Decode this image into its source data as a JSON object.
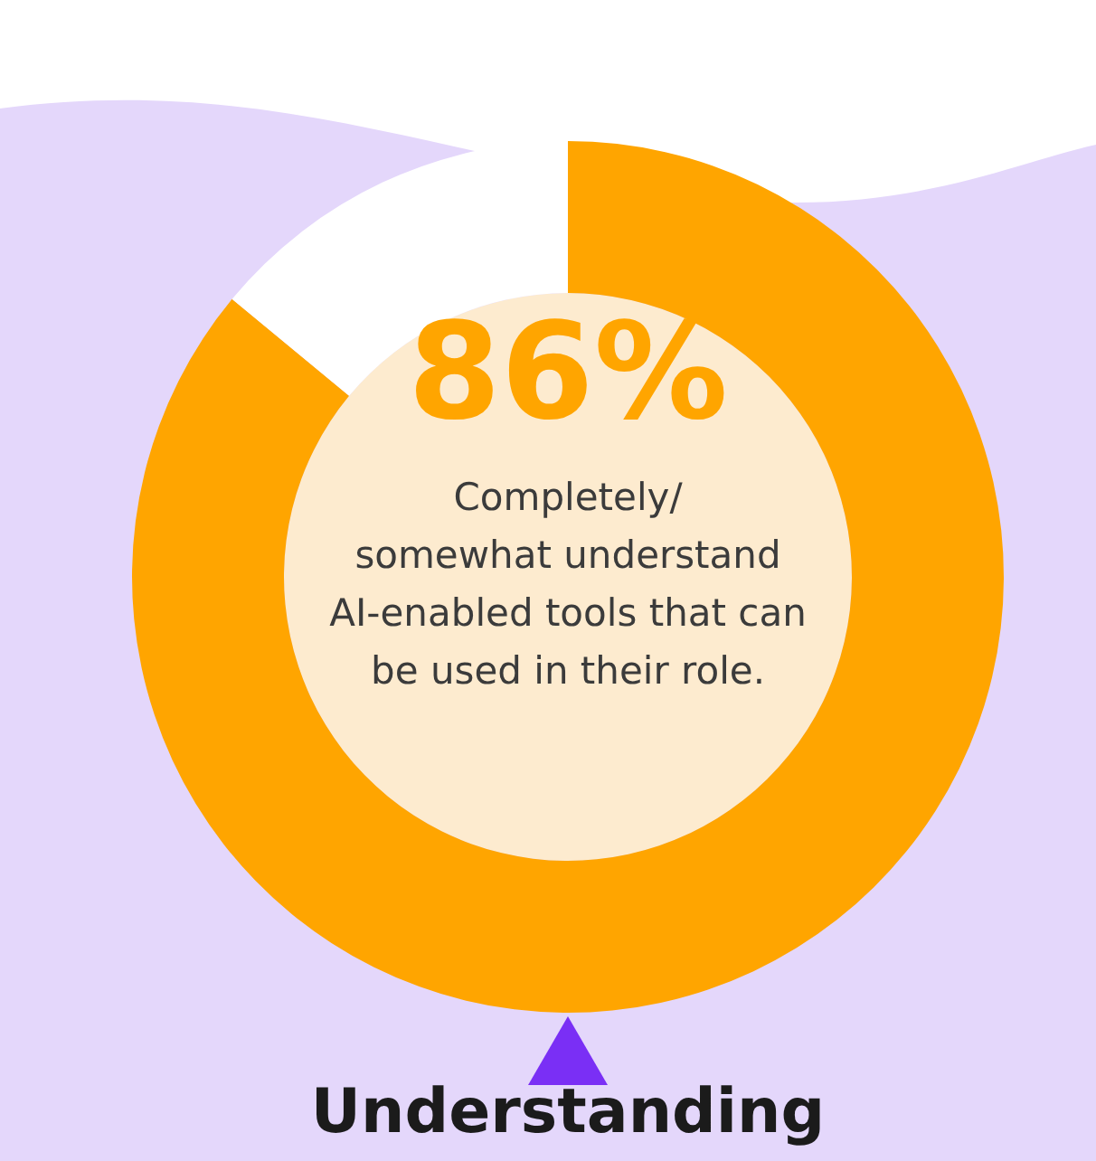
{
  "chart_data": {
    "type": "donut",
    "title": "Understanding",
    "categories": [
      null,
      null
    ],
    "values": [
      86,
      14
    ],
    "colors": [
      "#ffa500",
      "#ffffff"
    ],
    "value_labels": [
      "86%",
      null
    ],
    "annotations": [
      "Completely/\nsomewhat understand\nAI-enabled tools that can\nbe used in their role."
    ]
  }
}
